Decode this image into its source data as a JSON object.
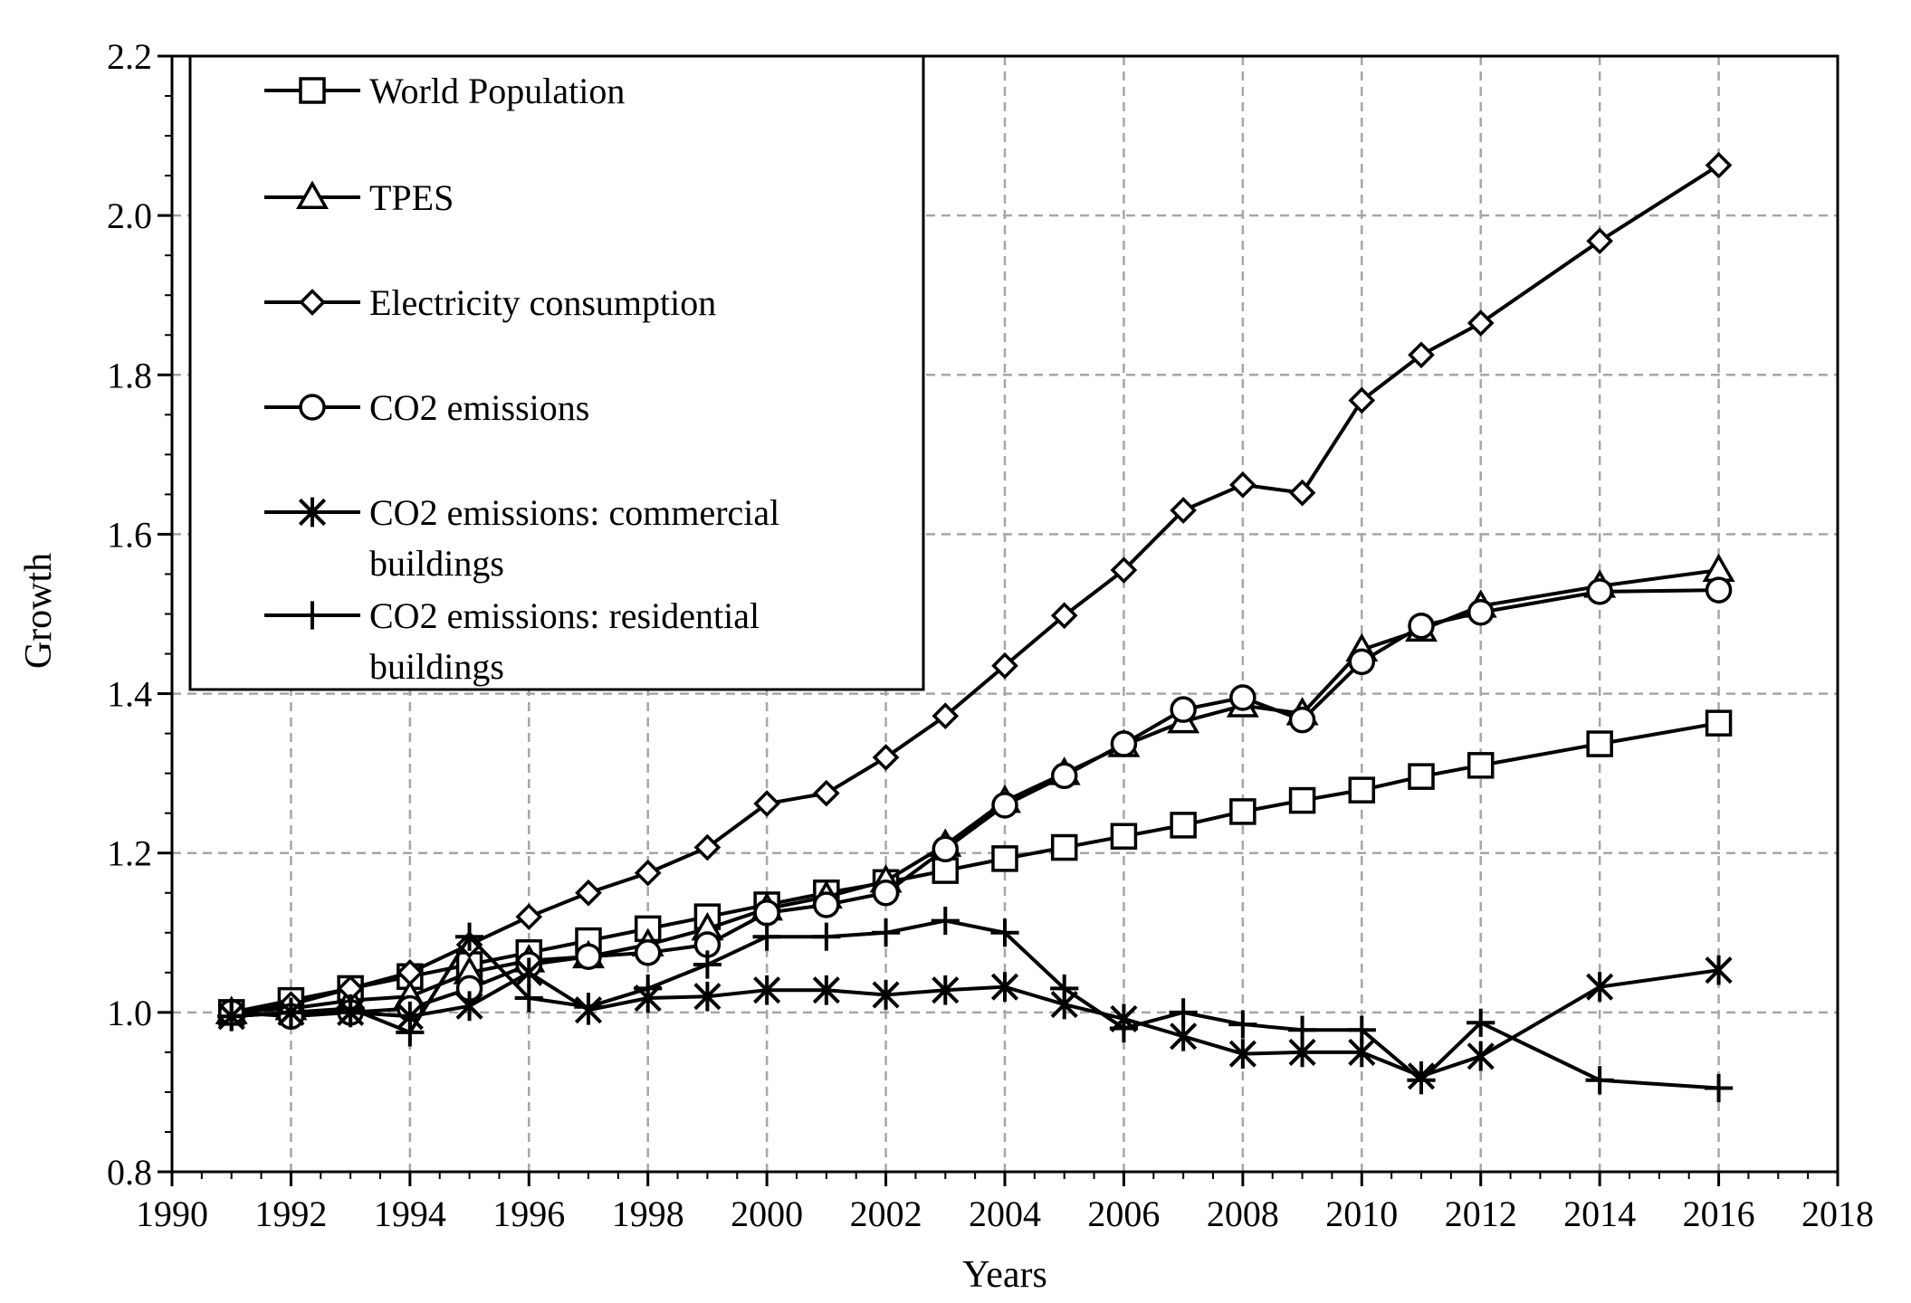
{
  "chart_data": {
    "type": "line",
    "title": "",
    "xlabel": "Years",
    "ylabel": "Growth",
    "xlim": [
      1990,
      2018
    ],
    "ylim": [
      0.8,
      2.2
    ],
    "x_ticks": [
      "1990",
      "1992",
      "1994",
      "1996",
      "1998",
      "2000",
      "2002",
      "2004",
      "2006",
      "2008",
      "2010",
      "2012",
      "2014",
      "2016",
      "2018"
    ],
    "y_ticks": [
      "0.8",
      "1.0",
      "1.2",
      "1.4",
      "1.6",
      "1.8",
      "2.0",
      "2.2"
    ],
    "grid": true,
    "legend_position": "top-left",
    "series": [
      {
        "name": "World Population",
        "marker": "square",
        "x": [
          1991,
          1992,
          1993,
          1994,
          1995,
          1996,
          1997,
          1998,
          1999,
          2000,
          2001,
          2002,
          2003,
          2004,
          2005,
          2006,
          2007,
          2008,
          2009,
          2010,
          2011,
          2012,
          2014,
          2016
        ],
        "values": [
          1.0,
          1.015,
          1.03,
          1.045,
          1.06,
          1.075,
          1.09,
          1.105,
          1.12,
          1.135,
          1.15,
          1.163,
          1.178,
          1.193,
          1.207,
          1.221,
          1.235,
          1.252,
          1.266,
          1.279,
          1.296,
          1.31,
          1.337,
          1.363
        ]
      },
      {
        "name": "TPES",
        "marker": "triangle",
        "x": [
          1991,
          1992,
          1993,
          1994,
          1995,
          1996,
          1997,
          1998,
          1999,
          2000,
          2001,
          2002,
          2003,
          2004,
          2005,
          2006,
          2007,
          2008,
          2009,
          2010,
          2011,
          2012,
          2014,
          2016
        ],
        "values": [
          1.0,
          1.005,
          1.015,
          1.02,
          1.05,
          1.065,
          1.07,
          1.085,
          1.105,
          1.13,
          1.145,
          1.165,
          1.21,
          1.265,
          1.3,
          1.335,
          1.365,
          1.385,
          1.375,
          1.455,
          1.48,
          1.51,
          1.535,
          1.555
        ]
      },
      {
        "name": "Electricity consumption",
        "marker": "diamond",
        "x": [
          1991,
          1992,
          1993,
          1994,
          1995,
          1996,
          1997,
          1998,
          1999,
          2000,
          2001,
          2002,
          2003,
          2004,
          2005,
          2006,
          2007,
          2008,
          2009,
          2010,
          2011,
          2012,
          2014,
          2016
        ],
        "values": [
          1.0,
          1.01,
          1.03,
          1.05,
          1.085,
          1.12,
          1.15,
          1.175,
          1.207,
          1.262,
          1.275,
          1.32,
          1.372,
          1.435,
          1.498,
          1.555,
          1.63,
          1.662,
          1.652,
          1.768,
          1.825,
          1.865,
          1.968,
          2.063
        ]
      },
      {
        "name": "CO2 emissions",
        "marker": "circle",
        "x": [
          1991,
          1992,
          1993,
          1994,
          1995,
          1996,
          1997,
          1998,
          1999,
          2000,
          2001,
          2002,
          2003,
          2004,
          2005,
          2006,
          2007,
          2008,
          2009,
          2010,
          2011,
          2012,
          2014,
          2016
        ],
        "values": [
          1.0,
          0.995,
          1.0,
          1.005,
          1.03,
          1.06,
          1.07,
          1.075,
          1.085,
          1.125,
          1.135,
          1.15,
          1.205,
          1.26,
          1.297,
          1.337,
          1.38,
          1.395,
          1.367,
          1.44,
          1.485,
          1.502,
          1.528,
          1.53
        ]
      },
      {
        "name": "CO2 emissions: commercial buildings",
        "marker": "asterisk",
        "x": [
          1991,
          1992,
          1993,
          1994,
          1995,
          1996,
          1997,
          1998,
          1999,
          2000,
          2001,
          2002,
          2003,
          2004,
          2005,
          2006,
          2007,
          2008,
          2009,
          2010,
          2011,
          2012,
          2014,
          2016
        ],
        "values": [
          0.995,
          1.0,
          1.0,
          0.995,
          1.008,
          1.05,
          1.003,
          1.018,
          1.02,
          1.028,
          1.028,
          1.022,
          1.028,
          1.032,
          1.01,
          0.992,
          0.97,
          0.948,
          0.95,
          0.95,
          0.92,
          0.945,
          1.032,
          1.053
        ]
      },
      {
        "name": "CO2 emissions: residential buildings",
        "marker": "plus",
        "x": [
          1991,
          1992,
          1993,
          1994,
          1995,
          1996,
          1997,
          1998,
          1999,
          2000,
          2001,
          2002,
          2003,
          2004,
          2005,
          2006,
          2007,
          2008,
          2009,
          2010,
          2011,
          2012,
          2014,
          2016
        ],
        "values": [
          0.995,
          1.0,
          1.005,
          0.975,
          1.095,
          1.018,
          1.007,
          1.03,
          1.06,
          1.095,
          1.095,
          1.1,
          1.115,
          1.1,
          1.03,
          0.98,
          1.0,
          0.985,
          0.978,
          0.978,
          0.915,
          0.987,
          0.915,
          0.905
        ]
      }
    ],
    "legend": [
      {
        "lines": [
          "World Population"
        ],
        "marker": "square"
      },
      {
        "lines": [
          "TPES"
        ],
        "marker": "triangle"
      },
      {
        "lines": [
          "Electricity consumption"
        ],
        "marker": "diamond"
      },
      {
        "lines": [
          "CO2 emissions"
        ],
        "marker": "circle"
      },
      {
        "lines": [
          "CO2 emissions: commercial",
          "buildings"
        ],
        "marker": "asterisk"
      },
      {
        "lines": [
          "CO2 emissions: residential",
          "buildings"
        ],
        "marker": "plus"
      }
    ]
  }
}
